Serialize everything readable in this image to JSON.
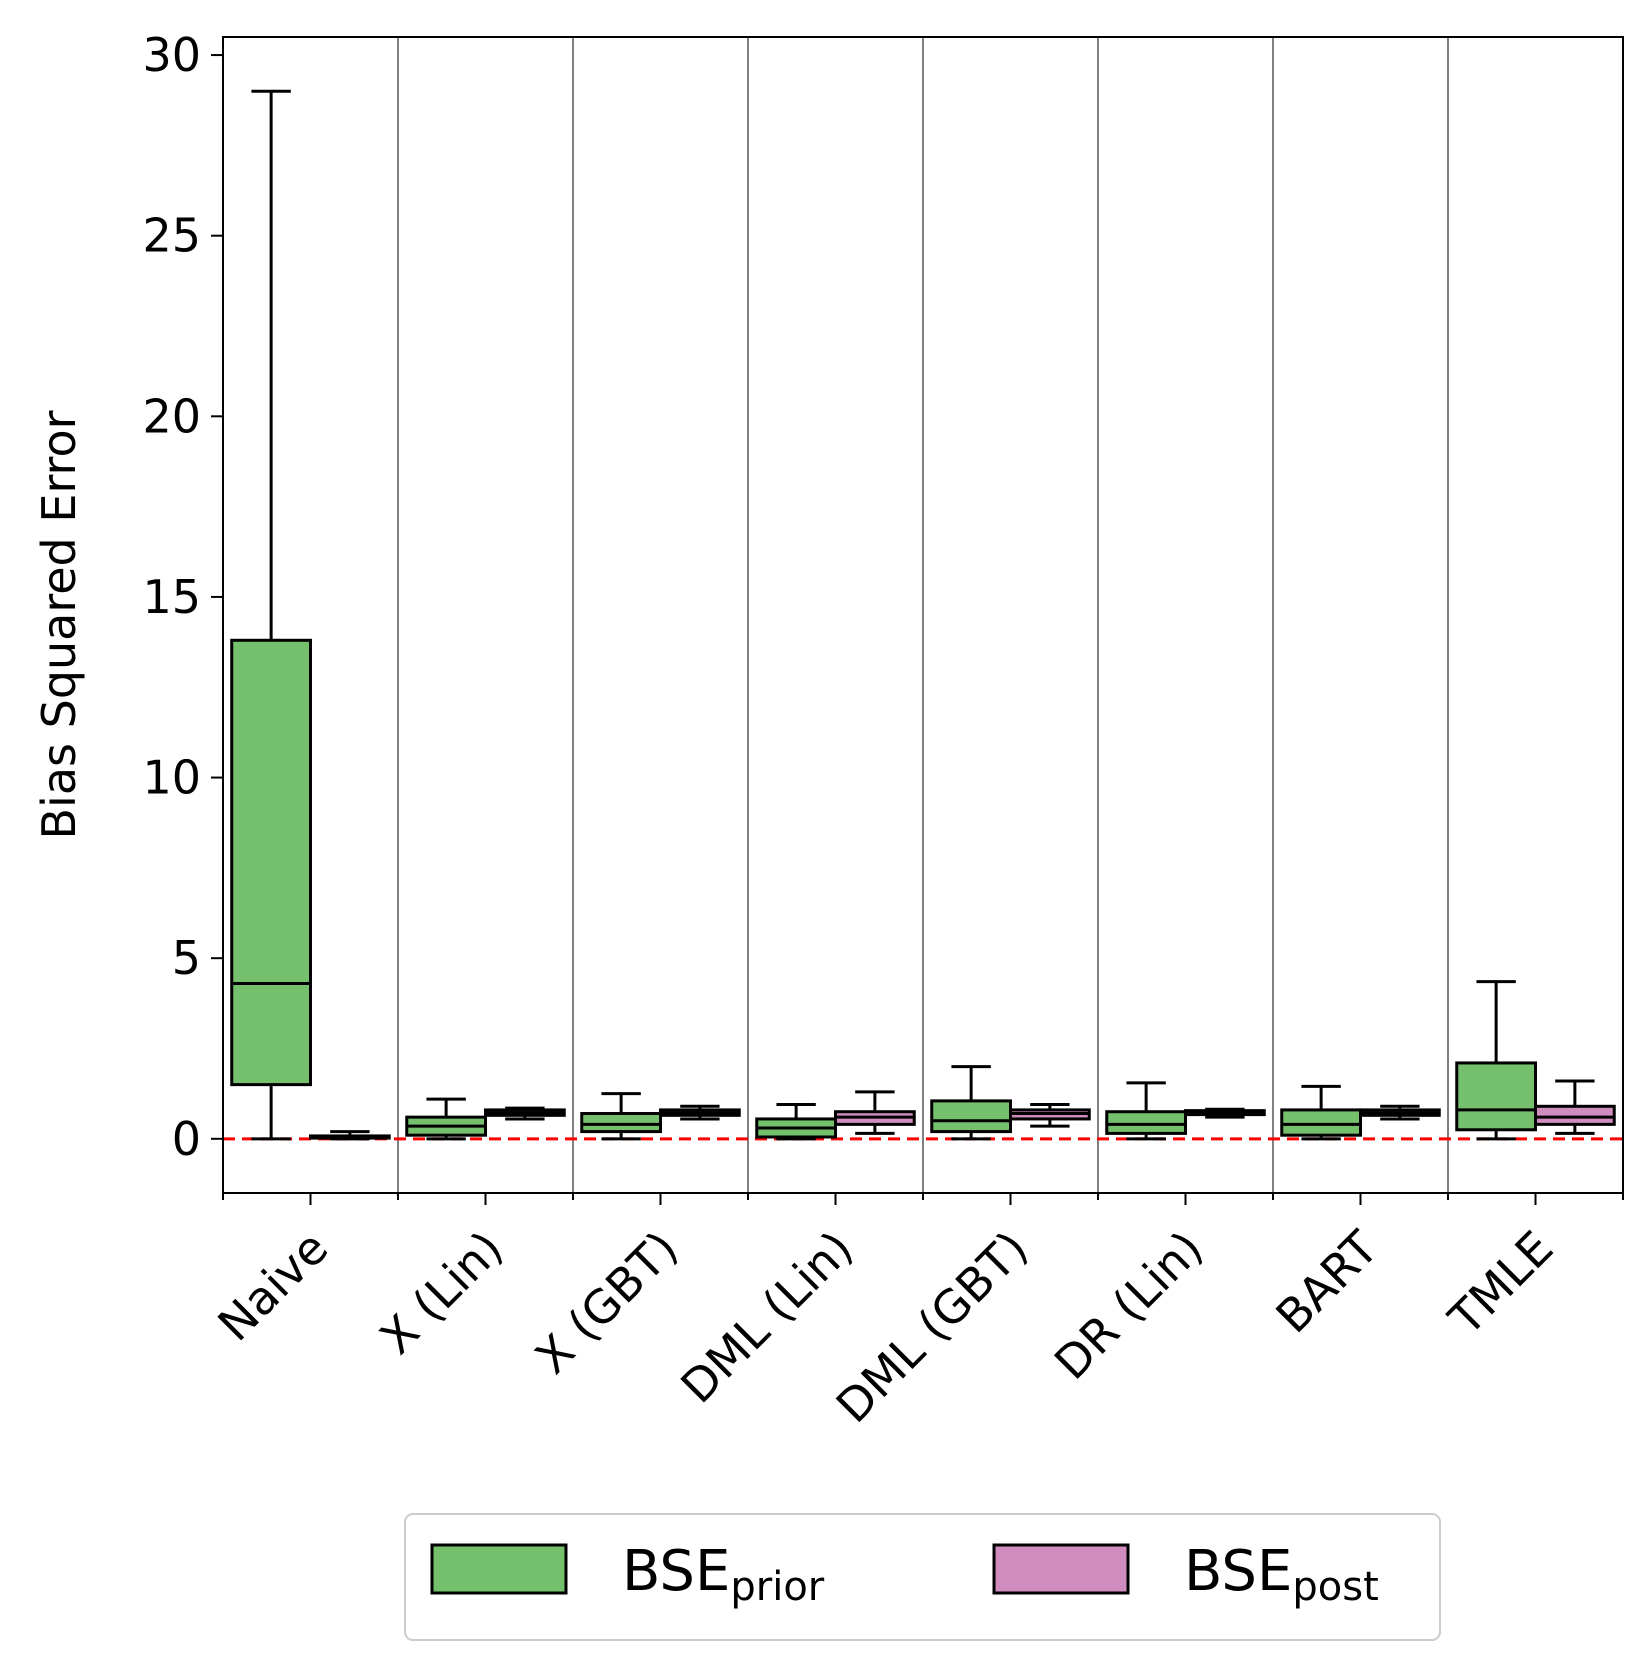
{
  "chart_data": {
    "type": "box",
    "ylabel": "Bias Squared Error",
    "xlabel": "",
    "ylim": [
      -1.5,
      30.5
    ],
    "yticks": [
      0,
      5,
      10,
      15,
      20,
      25,
      30
    ],
    "grid": "vertical separators between categories",
    "reference_line": {
      "y": 0,
      "color": "#ff0000",
      "style": "dashed"
    },
    "categories": [
      "Naive",
      "X (Lin)",
      "X (GBT)",
      "DML (Lin)",
      "DML (GBT)",
      "DR (Lin)",
      "BART",
      "TMLE"
    ],
    "legend": {
      "placement": "bottom-center"
    },
    "series": [
      {
        "name": "BSE",
        "name_subscript": "prior",
        "color": "#74c06d",
        "boxes": [
          {
            "whislo": 0.0,
            "q1": 1.5,
            "med": 4.3,
            "q3": 13.8,
            "whishi": 29.0
          },
          {
            "whislo": 0.0,
            "q1": 0.1,
            "med": 0.35,
            "q3": 0.6,
            "whishi": 1.1
          },
          {
            "whislo": 0.0,
            "q1": 0.2,
            "med": 0.4,
            "q3": 0.7,
            "whishi": 1.25
          },
          {
            "whislo": 0.0,
            "q1": 0.05,
            "med": 0.3,
            "q3": 0.55,
            "whishi": 0.95
          },
          {
            "whislo": 0.0,
            "q1": 0.2,
            "med": 0.5,
            "q3": 1.05,
            "whishi": 2.0
          },
          {
            "whislo": 0.0,
            "q1": 0.15,
            "med": 0.4,
            "q3": 0.75,
            "whishi": 1.55
          },
          {
            "whislo": 0.0,
            "q1": 0.1,
            "med": 0.4,
            "q3": 0.8,
            "whishi": 1.45
          },
          {
            "whislo": 0.0,
            "q1": 0.25,
            "med": 0.8,
            "q3": 2.1,
            "whishi": 4.35
          }
        ]
      },
      {
        "name": "BSE",
        "name_subscript": "post",
        "color": "#d08bbf",
        "boxes": [
          {
            "whislo": 0.0,
            "q1": 0.02,
            "med": 0.05,
            "q3": 0.08,
            "whishi": 0.2
          },
          {
            "whislo": 0.55,
            "q1": 0.65,
            "med": 0.72,
            "q3": 0.8,
            "whishi": 0.85
          },
          {
            "whislo": 0.55,
            "q1": 0.65,
            "med": 0.72,
            "q3": 0.8,
            "whishi": 0.9
          },
          {
            "whislo": 0.15,
            "q1": 0.4,
            "med": 0.6,
            "q3": 0.75,
            "whishi": 1.3
          },
          {
            "whislo": 0.35,
            "q1": 0.55,
            "med": 0.7,
            "q3": 0.8,
            "whishi": 0.95
          },
          {
            "whislo": 0.6,
            "q1": 0.67,
            "med": 0.72,
            "q3": 0.78,
            "whishi": 0.82
          },
          {
            "whislo": 0.55,
            "q1": 0.65,
            "med": 0.72,
            "q3": 0.8,
            "whishi": 0.9
          },
          {
            "whislo": 0.15,
            "q1": 0.4,
            "med": 0.6,
            "q3": 0.9,
            "whishi": 1.6
          }
        ]
      }
    ]
  }
}
